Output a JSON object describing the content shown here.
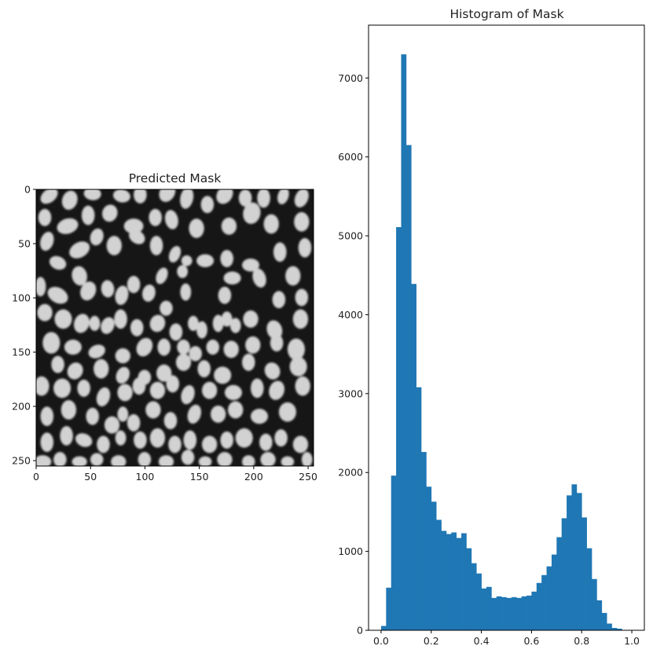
{
  "figure": {
    "panels": [
      "image",
      "histogram"
    ]
  },
  "chart_data": [
    {
      "type": "heatmap",
      "title": "Predicted Mask",
      "colormap": "gray",
      "xlim": [
        0,
        255
      ],
      "ylim": [
        255,
        0
      ],
      "x_ticks": [
        0,
        50,
        100,
        150,
        200,
        250
      ],
      "y_ticks": [
        0,
        50,
        100,
        150,
        200,
        250
      ],
      "x_tick_labels": [
        "0",
        "50",
        "100",
        "150",
        "200",
        "250"
      ],
      "y_tick_labels": [
        "0",
        "50",
        "100",
        "150",
        "200",
        "250"
      ],
      "background_color": "#161616",
      "blob_color": "#d2d2d2",
      "blobs": [
        [
          12,
          6,
          6,
          9,
          0.9
        ],
        [
          31,
          10,
          7,
          9,
          0.3
        ],
        [
          52,
          4,
          8,
          6,
          0.1
        ],
        [
          79,
          6,
          8,
          6,
          0.2
        ],
        [
          96,
          5,
          6,
          8,
          0
        ],
        [
          121,
          3,
          7,
          9,
          0.5
        ],
        [
          139,
          8,
          6,
          10,
          0.2
        ],
        [
          158,
          14,
          6,
          8,
          0
        ],
        [
          174,
          5,
          7,
          9,
          0.6
        ],
        [
          193,
          8,
          6,
          8,
          0
        ],
        [
          210,
          8,
          6,
          9,
          0
        ],
        [
          228,
          6,
          5,
          8,
          0.3
        ],
        [
          245,
          8,
          6,
          9,
          0.4
        ],
        [
          8,
          26,
          6,
          8,
          0
        ],
        [
          29,
          34,
          10,
          7,
          -0.3
        ],
        [
          48,
          24,
          6,
          9,
          0
        ],
        [
          68,
          22,
          7,
          8,
          0.3
        ],
        [
          90,
          34,
          9,
          7,
          0
        ],
        [
          110,
          26,
          6,
          8,
          0
        ],
        [
          125,
          28,
          6,
          9,
          -0.2
        ],
        [
          148,
          36,
          7,
          9,
          0
        ],
        [
          178,
          34,
          7,
          8,
          0
        ],
        [
          199,
          22,
          8,
          10,
          0.2
        ],
        [
          217,
          32,
          7,
          9,
          0
        ],
        [
          245,
          30,
          7,
          9,
          0
        ],
        [
          10,
          48,
          6,
          9,
          0.3
        ],
        [
          20,
          68,
          8,
          6,
          0.4
        ],
        [
          40,
          56,
          10,
          7,
          -0.5
        ],
        [
          56,
          44,
          6,
          8,
          0.3
        ],
        [
          72,
          52,
          7,
          9,
          0
        ],
        [
          93,
          44,
          8,
          6,
          0.6
        ],
        [
          111,
          52,
          6,
          9,
          0
        ],
        [
          128,
          60,
          5,
          8,
          0.4
        ],
        [
          135,
          76,
          5,
          6,
          0
        ],
        [
          139,
          66,
          5,
          5,
          0
        ],
        [
          156,
          66,
          8,
          6,
          0
        ],
        [
          176,
          64,
          6,
          8,
          0
        ],
        [
          181,
          82,
          8,
          6,
          0
        ],
        [
          198,
          70,
          8,
          6,
          0
        ],
        [
          206,
          82,
          6,
          9,
          -0.3
        ],
        [
          225,
          58,
          6,
          9,
          0
        ],
        [
          237,
          80,
          7,
          9,
          0
        ],
        [
          248,
          54,
          6,
          9,
          0
        ],
        [
          4,
          90,
          5,
          9,
          0
        ],
        [
          20,
          98,
          10,
          7,
          0.5
        ],
        [
          40,
          80,
          7,
          9,
          -0.2
        ],
        [
          48,
          94,
          7,
          9,
          0.4
        ],
        [
          66,
          92,
          6,
          8,
          -0.1
        ],
        [
          79,
          98,
          6,
          9,
          0.2
        ],
        [
          90,
          88,
          6,
          8,
          0
        ],
        [
          104,
          96,
          6,
          8,
          0.2
        ],
        [
          116,
          80,
          5,
          8,
          0.4
        ],
        [
          138,
          95,
          5,
          8,
          0
        ],
        [
          174,
          98,
          6,
          8,
          0
        ],
        [
          224,
          102,
          6,
          8,
          0
        ],
        [
          245,
          100,
          6,
          8,
          0
        ],
        [
          8,
          114,
          7,
          8,
          0
        ],
        [
          25,
          120,
          8,
          9,
          0
        ],
        [
          42,
          124,
          7,
          9,
          0.3
        ],
        [
          54,
          124,
          5,
          7,
          0
        ],
        [
          66,
          126,
          6,
          8,
          0.4
        ],
        [
          78,
          120,
          6,
          9,
          0
        ],
        [
          93,
          128,
          6,
          8,
          0
        ],
        [
          112,
          124,
          7,
          8,
          0.3
        ],
        [
          120,
          110,
          6,
          7,
          0
        ],
        [
          129,
          132,
          6,
          8,
          0
        ],
        [
          145,
          124,
          5,
          7,
          0
        ],
        [
          153,
          130,
          5,
          8,
          0
        ],
        [
          168,
          124,
          5,
          8,
          0
        ],
        [
          176,
          120,
          5,
          7,
          0
        ],
        [
          184,
          126,
          5,
          7,
          0
        ],
        [
          198,
          120,
          7,
          8,
          0
        ],
        [
          220,
          130,
          7,
          9,
          -0.3
        ],
        [
          244,
          120,
          7,
          9,
          0
        ],
        [
          14,
          142,
          8,
          10,
          0
        ],
        [
          34,
          146,
          8,
          7,
          0
        ],
        [
          56,
          150,
          8,
          6,
          -0.4
        ],
        [
          80,
          154,
          7,
          7,
          0
        ],
        [
          100,
          146,
          7,
          9,
          0.5
        ],
        [
          118,
          146,
          6,
          8,
          0
        ],
        [
          136,
          146,
          6,
          7,
          0
        ],
        [
          147,
          152,
          6,
          7,
          0
        ],
        [
          163,
          146,
          6,
          7,
          0
        ],
        [
          180,
          148,
          7,
          8,
          0
        ],
        [
          200,
          144,
          7,
          8,
          0
        ],
        [
          222,
          142,
          6,
          8,
          0
        ],
        [
          240,
          148,
          8,
          10,
          0
        ],
        [
          20,
          162,
          6,
          8,
          0
        ],
        [
          36,
          168,
          7,
          8,
          0.5
        ],
        [
          60,
          166,
          7,
          9,
          0
        ],
        [
          80,
          172,
          6,
          8,
          0.4
        ],
        [
          100,
          174,
          6,
          7,
          0
        ],
        [
          118,
          170,
          7,
          8,
          0
        ],
        [
          136,
          160,
          7,
          8,
          0
        ],
        [
          155,
          166,
          6,
          8,
          0
        ],
        [
          172,
          172,
          8,
          8,
          0
        ],
        [
          196,
          160,
          6,
          8,
          0
        ],
        [
          218,
          168,
          7,
          8,
          -0.4
        ],
        [
          242,
          164,
          8,
          9,
          0
        ],
        [
          5,
          182,
          7,
          9,
          0
        ],
        [
          24,
          184,
          8,
          9,
          0
        ],
        [
          44,
          184,
          6,
          8,
          0
        ],
        [
          62,
          192,
          6,
          9,
          0.3
        ],
        [
          82,
          188,
          7,
          8,
          0
        ],
        [
          95,
          182,
          6,
          8,
          0
        ],
        [
          112,
          186,
          7,
          8,
          0
        ],
        [
          126,
          180,
          6,
          8,
          0
        ],
        [
          140,
          190,
          6,
          9,
          0.3
        ],
        [
          160,
          186,
          7,
          8,
          0
        ],
        [
          182,
          188,
          8,
          7,
          0
        ],
        [
          204,
          184,
          6,
          9,
          0
        ],
        [
          222,
          186,
          7,
          9,
          0.3
        ],
        [
          246,
          182,
          7,
          9,
          0
        ],
        [
          10,
          210,
          6,
          9,
          0
        ],
        [
          30,
          204,
          7,
          9,
          0
        ],
        [
          52,
          210,
          6,
          8,
          0
        ],
        [
          70,
          218,
          7,
          8,
          0
        ],
        [
          80,
          208,
          5,
          7,
          0
        ],
        [
          90,
          216,
          6,
          8,
          0
        ],
        [
          108,
          204,
          7,
          8,
          0
        ],
        [
          124,
          214,
          6,
          8,
          0
        ],
        [
          146,
          208,
          6,
          9,
          0.3
        ],
        [
          168,
          208,
          7,
          8,
          0
        ],
        [
          184,
          204,
          7,
          8,
          0
        ],
        [
          206,
          210,
          8,
          7,
          0
        ],
        [
          232,
          206,
          8,
          9,
          0
        ],
        [
          10,
          234,
          6,
          9,
          0
        ],
        [
          28,
          228,
          6,
          9,
          0
        ],
        [
          44,
          232,
          8,
          6,
          0.4
        ],
        [
          62,
          236,
          6,
          8,
          0
        ],
        [
          78,
          230,
          5,
          7,
          0
        ],
        [
          96,
          232,
          6,
          8,
          0
        ],
        [
          112,
          230,
          7,
          9,
          0
        ],
        [
          128,
          236,
          6,
          8,
          0
        ],
        [
          142,
          232,
          6,
          9,
          0
        ],
        [
          160,
          236,
          7,
          8,
          0
        ],
        [
          176,
          232,
          6,
          8,
          0
        ],
        [
          192,
          230,
          8,
          9,
          0
        ],
        [
          212,
          234,
          6,
          8,
          0
        ],
        [
          226,
          230,
          6,
          8,
          0
        ],
        [
          244,
          236,
          7,
          8,
          0
        ],
        [
          6,
          252,
          8,
          6,
          0
        ],
        [
          22,
          250,
          6,
          7,
          0
        ],
        [
          40,
          252,
          7,
          5,
          0
        ],
        [
          56,
          250,
          6,
          6,
          0
        ],
        [
          76,
          252,
          7,
          6,
          0
        ],
        [
          100,
          250,
          6,
          7,
          0
        ],
        [
          120,
          252,
          7,
          6,
          0
        ],
        [
          140,
          248,
          6,
          7,
          0
        ],
        [
          156,
          252,
          6,
          5,
          0
        ],
        [
          174,
          250,
          7,
          7,
          0
        ],
        [
          196,
          252,
          6,
          6,
          0
        ],
        [
          214,
          250,
          7,
          7,
          0
        ],
        [
          232,
          252,
          6,
          5,
          0
        ],
        [
          250,
          250,
          5,
          7,
          0
        ]
      ]
    },
    {
      "type": "bar",
      "title": "Histogram of Mask",
      "xlabel": "",
      "ylabel": "",
      "xlim": [
        -0.05,
        1.05
      ],
      "ylim": [
        0,
        7670
      ],
      "x_ticks": [
        0.0,
        0.2,
        0.4,
        0.6,
        0.8,
        1.0
      ],
      "x_tick_labels": [
        "0.0",
        "0.2",
        "0.4",
        "0.6",
        "0.8",
        "1.0"
      ],
      "y_ticks": [
        0,
        1000,
        2000,
        3000,
        4000,
        5000,
        6000,
        7000
      ],
      "y_tick_labels": [
        "0",
        "1000",
        "2000",
        "3000",
        "4000",
        "5000",
        "6000",
        "7000"
      ],
      "bar_color": "#1f77b4",
      "bin_start": 0.0,
      "bin_width": 0.02,
      "values": [
        55,
        540,
        1960,
        5110,
        7300,
        6150,
        4390,
        3080,
        2260,
        1820,
        1630,
        1400,
        1260,
        1220,
        1240,
        1170,
        1230,
        1040,
        850,
        720,
        530,
        550,
        410,
        430,
        420,
        410,
        420,
        410,
        430,
        440,
        490,
        600,
        700,
        810,
        960,
        1180,
        1420,
        1710,
        1850,
        1740,
        1430,
        1040,
        650,
        380,
        220,
        85,
        30,
        20,
        5
      ]
    }
  ]
}
